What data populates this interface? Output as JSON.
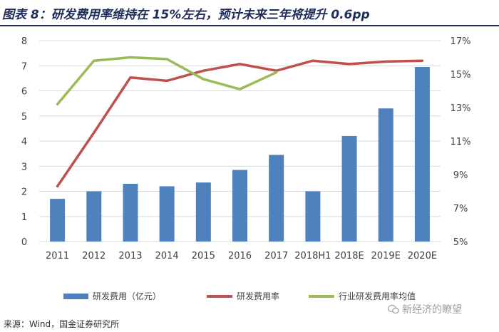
{
  "title": "图表 8：研发费用率维持在 15%左右，预计未来三年将提升 0.6pp",
  "source": "来源：Wind，国金证券研究所",
  "watermark": "新经济的瞭望",
  "colors": {
    "bar": "#4f81bd",
    "rate": "#c0504d",
    "industry": "#9bbb59",
    "grid": "#d9d9d9",
    "title": "#1f2d5a"
  },
  "chart_data": {
    "type": "bar",
    "categories": [
      "2011",
      "2012",
      "2013",
      "2014",
      "2015",
      "2016",
      "2017",
      "2018H1",
      "2018E",
      "2019E",
      "2020E"
    ],
    "series": [
      {
        "name": "研发费用（亿元）",
        "type": "bar",
        "axis": "left",
        "values": [
          1.7,
          2.0,
          2.3,
          2.2,
          2.35,
          2.85,
          3.45,
          2.0,
          4.2,
          5.3,
          6.95
        ]
      },
      {
        "name": "研发费用率",
        "type": "line",
        "axis": "right",
        "values": [
          8.3,
          11.5,
          14.8,
          14.6,
          15.2,
          15.6,
          15.2,
          15.8,
          15.6,
          15.75,
          15.8
        ]
      },
      {
        "name": "行业研发费用率均值",
        "type": "line",
        "axis": "right",
        "values": [
          13.2,
          15.8,
          16.0,
          15.9,
          14.7,
          14.1,
          15.1,
          null,
          null,
          null,
          null
        ]
      }
    ],
    "yLeft": {
      "min": 0,
      "max": 8,
      "ticks": [
        "0",
        "1",
        "2",
        "3",
        "4",
        "5",
        "6",
        "7",
        "8"
      ]
    },
    "yRight": {
      "min": 5,
      "max": 17,
      "ticks": [
        "5%",
        "7%",
        "9%",
        "11%",
        "13%",
        "15%",
        "17%"
      ]
    },
    "legend": [
      "研发费用（亿元）",
      "研发费用率",
      "行业研发费用率均值"
    ],
    "legend_position": "bottom"
  }
}
